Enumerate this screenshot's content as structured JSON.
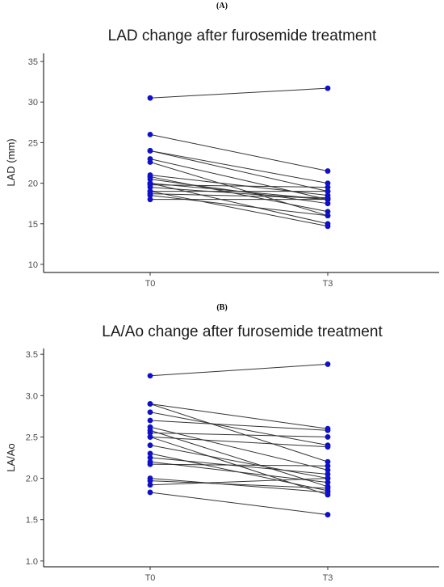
{
  "chart_data": [
    {
      "panel_label": "(A)",
      "type": "line",
      "title": "LAD change after furosemide treatment",
      "xlabel": "",
      "ylabel": "LAD (mm)",
      "categories": [
        "T0",
        "T3"
      ],
      "ylim": [
        9,
        36
      ],
      "yticks": [
        10,
        15,
        20,
        25,
        30,
        35
      ],
      "grid": false,
      "point_color": "#1010c8",
      "line_color": "#333333",
      "series": [
        {
          "values": [
            30.5,
            31.7
          ]
        },
        {
          "values": [
            26.0,
            21.5
          ]
        },
        {
          "values": [
            24.0,
            19.0
          ]
        },
        {
          "values": [
            24.0,
            20.0
          ]
        },
        {
          "values": [
            23.0,
            18.0
          ]
        },
        {
          "values": [
            22.6,
            16.0
          ]
        },
        {
          "values": [
            21.0,
            18.5
          ]
        },
        {
          "values": [
            20.8,
            16.5
          ]
        },
        {
          "values": [
            20.5,
            17.5
          ]
        },
        {
          "values": [
            20.0,
            15.0
          ]
        },
        {
          "values": [
            20.0,
            18.0
          ]
        },
        {
          "values": [
            19.8,
            19.5
          ]
        },
        {
          "values": [
            19.5,
            18.0
          ]
        },
        {
          "values": [
            19.0,
            14.7
          ]
        },
        {
          "values": [
            19.0,
            19.0
          ]
        },
        {
          "values": [
            18.7,
            18.2
          ]
        },
        {
          "values": [
            18.5,
            16.0
          ]
        },
        {
          "values": [
            18.0,
            18.0
          ]
        }
      ]
    },
    {
      "panel_label": "(B)",
      "type": "line",
      "title": "LA/Ao change after furosemide treatment",
      "xlabel": "",
      "ylabel": "LA/Ao",
      "categories": [
        "T0",
        "T3"
      ],
      "ylim": [
        0.93,
        3.57
      ],
      "yticks": [
        1.0,
        1.5,
        2.0,
        2.5,
        3.0,
        3.5
      ],
      "grid": false,
      "point_color": "#1010c8",
      "line_color": "#333333",
      "series": [
        {
          "values": [
            3.24,
            3.38
          ]
        },
        {
          "values": [
            2.9,
            2.6
          ]
        },
        {
          "values": [
            2.9,
            2.2
          ]
        },
        {
          "values": [
            2.8,
            2.4
          ]
        },
        {
          "values": [
            2.7,
            2.58
          ]
        },
        {
          "values": [
            2.62,
            2.1
          ]
        },
        {
          "values": [
            2.58,
            1.9
          ]
        },
        {
          "values": [
            2.55,
            2.5
          ]
        },
        {
          "values": [
            2.5,
            2.38
          ]
        },
        {
          "values": [
            2.5,
            1.8
          ]
        },
        {
          "values": [
            2.4,
            2.0
          ]
        },
        {
          "values": [
            2.3,
            1.85
          ]
        },
        {
          "values": [
            2.25,
            2.05
          ]
        },
        {
          "values": [
            2.2,
            1.95
          ]
        },
        {
          "values": [
            2.17,
            2.15
          ]
        },
        {
          "values": [
            2.0,
            1.83
          ]
        },
        {
          "values": [
            1.97,
            1.88
          ]
        },
        {
          "values": [
            1.92,
            2.0
          ]
        },
        {
          "values": [
            1.83,
            1.56
          ]
        }
      ]
    }
  ]
}
